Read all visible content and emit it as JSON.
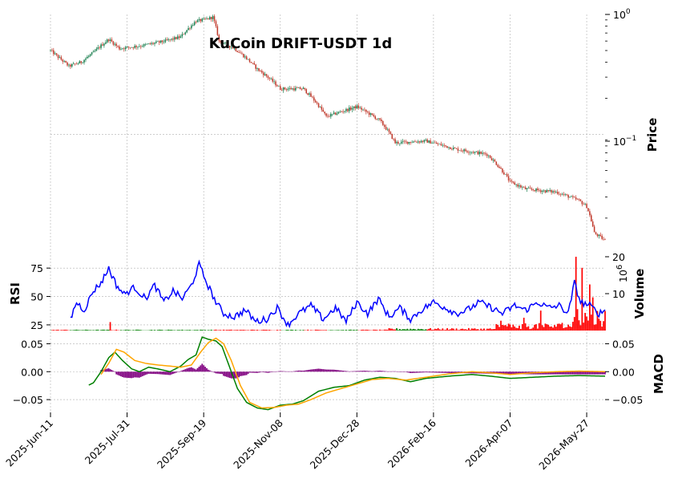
{
  "chart_data": {
    "type": "candlestick",
    "title": "KuCoin DRIFT-USDT 1d",
    "x_tick_labels": [
      "2025-Jun-11",
      "2025-Jul-31",
      "2025-Sep-19",
      "2025-Nov-08",
      "2025-Dec-28",
      "2026-Feb-16",
      "2026-Apr-07",
      "2026-May-27"
    ],
    "panels": {
      "price": {
        "ylabel": "Price",
        "scale": "log",
        "ylim": [
          0.012,
          1.0
        ],
        "tick_labels": [
          "10^0",
          "10^-1"
        ],
        "up_color": "#1b7f50",
        "down_color": "#c0392b",
        "series_anchors": [
          [
            0,
            0.5
          ],
          [
            5,
            0.44
          ],
          [
            12,
            0.37
          ],
          [
            20,
            0.4
          ],
          [
            28,
            0.48
          ],
          [
            38,
            0.62
          ],
          [
            45,
            0.52
          ],
          [
            60,
            0.55
          ],
          [
            75,
            0.6
          ],
          [
            85,
            0.65
          ],
          [
            95,
            0.88
          ],
          [
            100,
            0.9
          ],
          [
            106,
            0.95
          ],
          [
            110,
            0.6
          ],
          [
            120,
            0.52
          ],
          [
            135,
            0.35
          ],
          [
            150,
            0.24
          ],
          [
            165,
            0.24
          ],
          [
            180,
            0.14
          ],
          [
            200,
            0.17
          ],
          [
            215,
            0.13
          ],
          [
            225,
            0.085
          ],
          [
            245,
            0.088
          ],
          [
            265,
            0.075
          ],
          [
            285,
            0.068
          ],
          [
            300,
            0.04
          ],
          [
            310,
            0.035
          ],
          [
            330,
            0.033
          ],
          [
            345,
            0.028
          ],
          [
            350,
            0.025
          ],
          [
            355,
            0.015
          ],
          [
            362,
            0.013
          ]
        ]
      },
      "rsi": {
        "ylabel": "RSI",
        "ylim": [
          20,
          85
        ],
        "tick_labels": [
          "75",
          "50",
          "25"
        ],
        "tick_values": [
          75,
          50,
          25
        ],
        "line_color": "#0000ff",
        "series_anchors": [
          [
            13,
            30
          ],
          [
            17,
            45
          ],
          [
            22,
            38
          ],
          [
            28,
            55
          ],
          [
            33,
            62
          ],
          [
            38,
            75
          ],
          [
            43,
            60
          ],
          [
            48,
            52
          ],
          [
            55,
            58
          ],
          [
            62,
            48
          ],
          [
            68,
            60
          ],
          [
            74,
            45
          ],
          [
            80,
            55
          ],
          [
            86,
            48
          ],
          [
            92,
            60
          ],
          [
            97,
            78
          ],
          [
            102,
            62
          ],
          [
            108,
            45
          ],
          [
            113,
            35
          ],
          [
            120,
            32
          ],
          [
            127,
            38
          ],
          [
            134,
            28
          ],
          [
            141,
            30
          ],
          [
            148,
            40
          ],
          [
            155,
            25
          ],
          [
            162,
            35
          ],
          [
            170,
            42
          ],
          [
            178,
            30
          ],
          [
            186,
            40
          ],
          [
            193,
            28
          ],
          [
            200,
            45
          ],
          [
            207,
            35
          ],
          [
            214,
            48
          ],
          [
            221,
            32
          ],
          [
            228,
            40
          ],
          [
            235,
            30
          ],
          [
            242,
            38
          ],
          [
            250,
            45
          ],
          [
            258,
            40
          ],
          [
            265,
            35
          ],
          [
            272,
            38
          ],
          [
            280,
            45
          ],
          [
            288,
            40
          ],
          [
            295,
            35
          ],
          [
            303,
            42
          ],
          [
            310,
            38
          ],
          [
            318,
            45
          ],
          [
            325,
            40
          ],
          [
            332,
            42
          ],
          [
            338,
            35
          ],
          [
            342,
            62
          ],
          [
            346,
            45
          ],
          [
            352,
            42
          ],
          [
            358,
            35
          ],
          [
            362,
            38
          ]
        ]
      },
      "volume": {
        "ylabel": "Volume",
        "unit_label": "10^6",
        "ylim": [
          0,
          20
        ],
        "tick_labels": [
          "20",
          "10"
        ],
        "tick_values": [
          20,
          10
        ],
        "up_color": "#008000",
        "down_color": "#ff0000"
      },
      "macd": {
        "ylabel": "MACD",
        "ylim": [
          -0.07,
          0.065
        ],
        "tick_labels": [
          "0.05",
          "0.00",
          "-0.05"
        ],
        "tick_values": [
          0.05,
          0.0,
          -0.05
        ],
        "macd_color": "#008000",
        "signal_color": "#ffa500",
        "hist_color": "#800080",
        "macd_anchors": [
          [
            25,
            -0.024
          ],
          [
            28,
            -0.02
          ],
          [
            33,
            0.0
          ],
          [
            38,
            0.025
          ],
          [
            42,
            0.035
          ],
          [
            47,
            0.02
          ],
          [
            53,
            0.005
          ],
          [
            58,
            0.0
          ],
          [
            64,
            0.008
          ],
          [
            70,
            0.005
          ],
          [
            78,
            0.0
          ],
          [
            85,
            0.01
          ],
          [
            90,
            0.022
          ],
          [
            95,
            0.03
          ],
          [
            99,
            0.062
          ],
          [
            103,
            0.058
          ],
          [
            108,
            0.055
          ],
          [
            112,
            0.045
          ],
          [
            118,
            0.0
          ],
          [
            122,
            -0.03
          ],
          [
            128,
            -0.055
          ],
          [
            135,
            -0.065
          ],
          [
            142,
            -0.068
          ],
          [
            150,
            -0.06
          ],
          [
            158,
            -0.058
          ],
          [
            165,
            -0.052
          ],
          [
            175,
            -0.035
          ],
          [
            185,
            -0.028
          ],
          [
            195,
            -0.025
          ],
          [
            205,
            -0.015
          ],
          [
            215,
            -0.01
          ],
          [
            225,
            -0.012
          ],
          [
            235,
            -0.018
          ],
          [
            245,
            -0.012
          ],
          [
            260,
            -0.008
          ],
          [
            275,
            -0.005
          ],
          [
            287,
            -0.008
          ],
          [
            300,
            -0.012
          ],
          [
            315,
            -0.01
          ],
          [
            330,
            -0.008
          ],
          [
            345,
            -0.007
          ],
          [
            362,
            -0.008
          ]
        ],
        "signal_anchors": [
          [
            33,
            -0.005
          ],
          [
            38,
            0.015
          ],
          [
            43,
            0.04
          ],
          [
            48,
            0.035
          ],
          [
            55,
            0.02
          ],
          [
            62,
            0.015
          ],
          [
            70,
            0.012
          ],
          [
            78,
            0.01
          ],
          [
            85,
            0.008
          ],
          [
            92,
            0.012
          ],
          [
            98,
            0.035
          ],
          [
            103,
            0.052
          ],
          [
            108,
            0.06
          ],
          [
            113,
            0.05
          ],
          [
            118,
            0.02
          ],
          [
            124,
            -0.025
          ],
          [
            130,
            -0.055
          ],
          [
            138,
            -0.065
          ],
          [
            146,
            -0.064
          ],
          [
            154,
            -0.06
          ],
          [
            162,
            -0.058
          ],
          [
            170,
            -0.05
          ],
          [
            180,
            -0.038
          ],
          [
            190,
            -0.03
          ],
          [
            200,
            -0.022
          ],
          [
            210,
            -0.014
          ],
          [
            220,
            -0.012
          ],
          [
            232,
            -0.015
          ],
          [
            245,
            -0.01
          ],
          [
            260,
            -0.004
          ],
          [
            275,
            0.0
          ],
          [
            287,
            -0.002
          ],
          [
            300,
            -0.005
          ],
          [
            315,
            -0.002
          ],
          [
            330,
            0.0
          ],
          [
            345,
            0.001
          ],
          [
            362,
            0.0
          ]
        ]
      }
    }
  }
}
